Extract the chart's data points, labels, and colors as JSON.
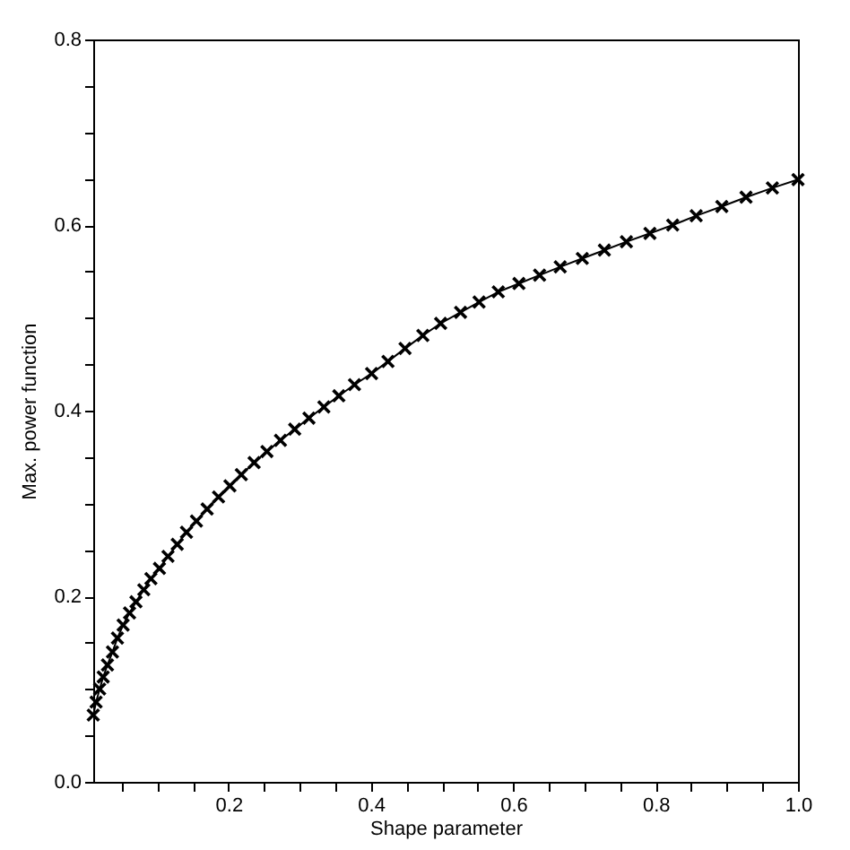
{
  "chart_data": {
    "type": "line",
    "xlabel": "Shape parameter",
    "ylabel": "Max. power function",
    "marker": "cross",
    "line_style": "solid",
    "grid": false,
    "x": [
      0.01,
      0.014,
      0.019,
      0.024,
      0.03,
      0.037,
      0.044,
      0.052,
      0.061,
      0.07,
      0.081,
      0.091,
      0.103,
      0.115,
      0.128,
      0.141,
      0.155,
      0.17,
      0.186,
      0.202,
      0.218,
      0.236,
      0.254,
      0.273,
      0.293,
      0.313,
      0.334,
      0.355,
      0.377,
      0.401,
      0.424,
      0.448,
      0.473,
      0.498,
      0.526,
      0.552,
      0.579,
      0.608,
      0.637,
      0.666,
      0.697,
      0.728,
      0.759,
      0.792,
      0.824,
      0.857,
      0.893,
      0.927,
      0.964,
      1.0
    ],
    "series": [
      {
        "color": "#000000",
        "values": [
          0.072,
          0.086,
          0.1,
          0.113,
          0.126,
          0.14,
          0.155,
          0.169,
          0.182,
          0.194,
          0.207,
          0.219,
          0.23,
          0.243,
          0.256,
          0.269,
          0.281,
          0.294,
          0.307,
          0.319,
          0.331,
          0.344,
          0.356,
          0.368,
          0.38,
          0.392,
          0.404,
          0.416,
          0.428,
          0.44,
          0.453,
          0.467,
          0.481,
          0.494,
          0.506,
          0.517,
          0.528,
          0.537,
          0.546,
          0.555,
          0.564,
          0.573,
          0.582,
          0.591,
          0.6,
          0.61,
          0.62,
          0.63,
          0.64,
          0.649
        ]
      }
    ],
    "xlim": [
      0.01,
      1.0
    ],
    "ylim": [
      0.0,
      0.8
    ],
    "xticks": [
      {
        "value": 0.05,
        "label": null
      },
      {
        "value": 0.1,
        "label": null
      },
      {
        "value": 0.15,
        "label": null
      },
      0.2,
      {
        "value": 0.25,
        "label": null
      },
      {
        "value": 0.3,
        "label": null
      },
      {
        "value": 0.35,
        "label": null
      },
      0.4,
      {
        "value": 0.45,
        "label": null
      },
      {
        "value": 0.5,
        "label": null
      },
      {
        "value": 0.55,
        "label": null
      },
      0.6,
      {
        "value": 0.65,
        "label": null
      },
      {
        "value": 0.7,
        "label": null
      },
      {
        "value": 0.75,
        "label": null
      },
      0.8,
      {
        "value": 0.85,
        "label": null
      },
      {
        "value": 0.9,
        "label": null
      },
      {
        "value": 0.95,
        "label": null
      },
      {
        "value": 1.0,
        "label": "1.0"
      }
    ],
    "yticks": [
      {
        "value": 0.0,
        "label": "0.0"
      },
      {
        "value": 0.05,
        "label": null
      },
      {
        "value": 0.1,
        "label": null
      },
      {
        "value": 0.15,
        "label": null
      },
      0.2,
      {
        "value": 0.25,
        "label": null
      },
      {
        "value": 0.3,
        "label": null
      },
      {
        "value": 0.35,
        "label": null
      },
      0.4,
      {
        "value": 0.45,
        "label": null
      },
      {
        "value": 0.5,
        "label": null
      },
      {
        "value": 0.55,
        "label": null
      },
      0.6,
      {
        "value": 0.65,
        "label": null
      },
      {
        "value": 0.7,
        "label": null
      },
      {
        "value": 0.75,
        "label": null
      },
      0.8
    ]
  }
}
